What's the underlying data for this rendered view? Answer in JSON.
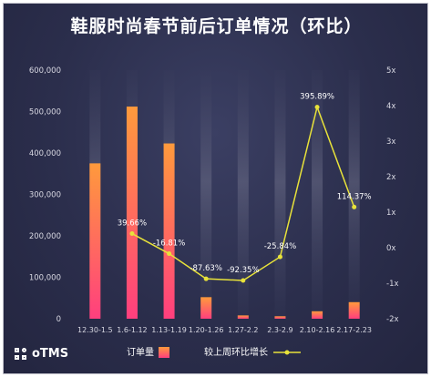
{
  "chart_data": {
    "type": "bar+line",
    "title": "鞋服时尚春节前后订单情况（环比）",
    "categories": [
      "12.30-1.5",
      "1.6-1.12",
      "1.13-1.19",
      "1.20-1.26",
      "1.27-2.2",
      "2.3-2.9",
      "2.10-2.16",
      "2.17-2.23"
    ],
    "series": [
      {
        "name": "订单量",
        "type": "bar",
        "axis": "left",
        "values": [
          375000,
          512000,
          423000,
          52000,
          8000,
          6000,
          18000,
          40000
        ]
      },
      {
        "name": "较上周环比增长",
        "type": "line",
        "axis": "right",
        "values": [
          null,
          0.3966,
          -0.1681,
          -0.8763,
          -0.9235,
          -0.2584,
          3.9589,
          1.1437
        ],
        "labels": [
          "",
          "39.66%",
          "-16.81%",
          "-87.63%",
          "-92.35%",
          "-25.84%",
          "395.89%",
          "114.37%"
        ]
      }
    ],
    "left_axis": {
      "min": 0,
      "max": 600000,
      "ticks": [
        "0",
        "100,000",
        "200,000",
        "300,000",
        "400,000",
        "500,000",
        "600,000"
      ],
      "tick_values": [
        0,
        100000,
        200000,
        300000,
        400000,
        500000,
        600000
      ]
    },
    "right_axis": {
      "min": -2,
      "max": 5,
      "ticks": [
        "-2x",
        "-1x",
        "0x",
        "1x",
        "2x",
        "3x",
        "4x",
        "5x"
      ],
      "tick_values": [
        -2,
        -1,
        0,
        1,
        2,
        3,
        4,
        5
      ]
    },
    "legend_position": "bottom",
    "colors": {
      "bar_top": "#ff9a3c",
      "bar_bottom": "#ff3f7e",
      "line": "#e8e23a",
      "background": "#2b2e4c"
    }
  },
  "logo": {
    "text": "oTMS"
  }
}
